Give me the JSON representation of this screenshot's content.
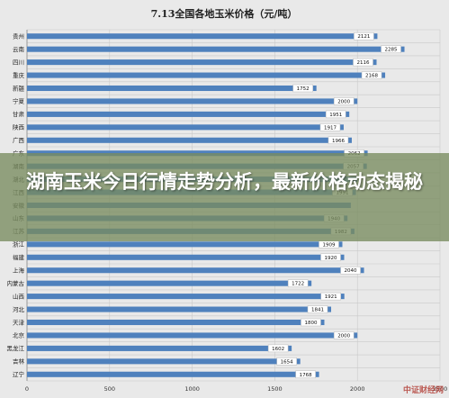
{
  "overlay": {
    "headline": "湖南玉米今日行情走势分析，最新价格动态揭秘"
  },
  "watermark": "中证财经网",
  "chart_data": {
    "type": "bar",
    "orientation": "horizontal",
    "title": "7.13全国各地玉米价格（元/吨）",
    "xlabel": "",
    "ylabel": "",
    "xlim": [
      0,
      2500
    ],
    "x_ticks": [
      "0",
      "500",
      "1000",
      "1500",
      "2000",
      "2500"
    ],
    "grid": true,
    "legend": "none",
    "bar_color": "#4f81bd",
    "categories": [
      "贵州",
      "云南",
      "四川",
      "重庆",
      "新疆",
      "宁夏",
      "甘肃",
      "陕西",
      "广西",
      "广东",
      "湖南",
      "湖北",
      "江西",
      "安徽",
      "山东",
      "江苏",
      "浙江",
      "福建",
      "上海",
      "内蒙古",
      "山西",
      "河北",
      "天津",
      "北京",
      "黑龙江",
      "吉林",
      "辽宁"
    ],
    "values": [
      2121,
      2285,
      2116,
      2168,
      1752,
      2000,
      1951,
      1917,
      1966,
      2062,
      2057,
      2000,
      1991,
      1960,
      1940,
      1982,
      1909,
      1920,
      2040,
      1722,
      1921,
      1841,
      1800,
      2000,
      1602,
      1654,
      1768
    ],
    "value_labels": [
      "2121",
      "2285",
      "2116",
      "2168",
      "1752",
      "2000",
      "1951",
      "1917",
      "1966",
      "2062",
      "2057",
      "",
      "1991",
      "",
      "1940",
      "1982",
      "1909",
      "1920",
      "2040",
      "1722",
      "1921",
      "1841",
      "1800",
      "2000",
      "1602",
      "1654",
      "1768"
    ]
  }
}
